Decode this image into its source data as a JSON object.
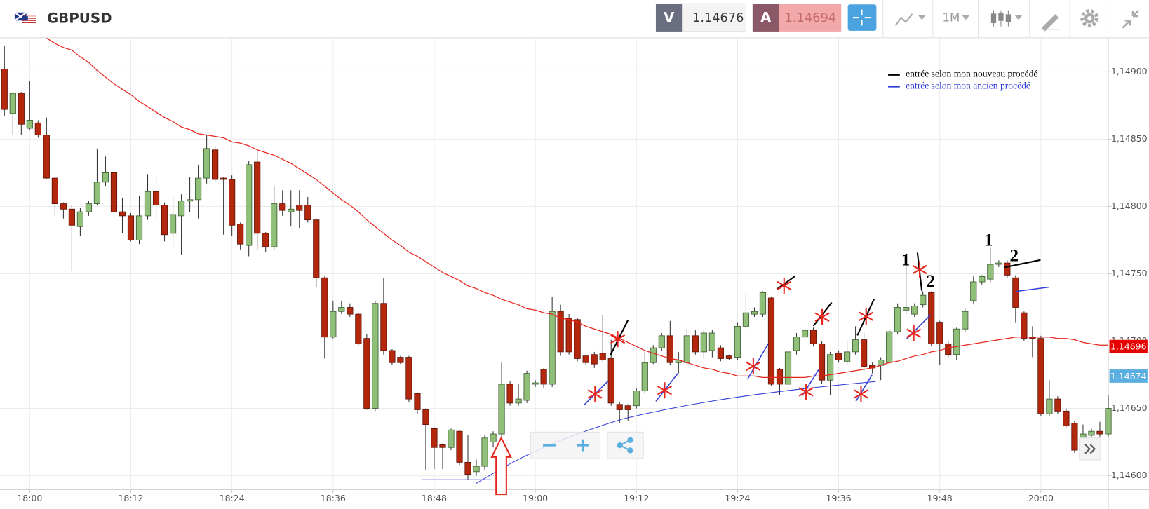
{
  "header": {
    "symbol": "GBPUSD",
    "bid_label": "V",
    "bid": "1.14676",
    "ask_label": "A",
    "ask": "1.14694",
    "timeframe": "1M"
  },
  "chart_data": {
    "type": "candlestick",
    "categories": [
      null,
      null,
      null,
      "18:00",
      null,
      null,
      null,
      null,
      null,
      null,
      null,
      null,
      null,
      null,
      null,
      "18:12",
      null,
      null,
      null,
      null,
      null,
      null,
      null,
      null,
      null,
      null,
      null,
      "18:24",
      null,
      null,
      null,
      null,
      null,
      null,
      null,
      null,
      null,
      null,
      null,
      "18:36",
      null,
      null,
      null,
      null,
      null,
      null,
      null,
      null,
      null,
      null,
      null,
      "18:48",
      null,
      null,
      null,
      null,
      null,
      null,
      null,
      null,
      null,
      null,
      null,
      "19:00",
      null,
      null,
      null,
      null,
      null,
      null,
      null,
      null,
      null,
      null,
      null,
      "19:12",
      null,
      null,
      null,
      null,
      null,
      null,
      null,
      null,
      null,
      null,
      null,
      "19:24",
      null,
      null,
      null,
      null,
      null,
      null,
      null,
      null,
      null,
      null,
      null,
      "19:36",
      null,
      null,
      null,
      null,
      null,
      null,
      null,
      null,
      null,
      null,
      null,
      "19:48",
      null,
      null,
      null,
      null,
      null,
      null,
      null,
      null,
      null,
      null,
      null,
      "20:00",
      null,
      null,
      null,
      null,
      null,
      null,
      null,
      null
    ],
    "open": [
      1.14902,
      1.14869,
      1.14884,
      1.14858,
      1.14862,
      1.14853,
      1.14821,
      1.14802,
      1.14798,
      1.14785,
      1.14796,
      1.14802,
      1.14818,
      1.14825,
      1.14796,
      1.14793,
      1.14775,
      1.14793,
      1.14811,
      1.14801,
      1.1478,
      1.14793,
      1.14804,
      1.14805,
      1.14821,
      1.14842,
      1.14821,
      1.1482,
      1.14787,
      1.14771,
      1.14833,
      1.1478,
      1.1477,
      1.14802,
      1.14796,
      1.14801,
      1.14801,
      1.1479,
      1.14747,
      1.14703,
      1.14722,
      1.14725,
      1.1472,
      1.14702,
      1.1465,
      1.14728,
      1.14693,
      1.14688,
      1.14688,
      1.14661,
      1.14649,
      1.14635,
      1.14623,
      1.14621,
      1.14633,
      1.1461,
      1.14603,
      1.14607,
      1.14625,
      1.14631,
      1.14668,
      1.14654,
      1.14656,
      1.14668,
      1.14679,
      1.14668,
      1.14722,
      1.14717,
      1.14716,
      1.14689,
      1.1469,
      1.14691,
      1.14687,
      1.14653,
      1.14652,
      1.14652,
      1.14663,
      1.14684,
      1.14695,
      1.14704,
      1.14684,
      1.14684,
      1.14704,
      1.14692,
      1.14693,
      1.14695,
      1.14689,
      1.14688,
      1.14711,
      1.1472,
      1.1472,
      1.14732,
      1.14679,
      1.14668,
      1.14693,
      1.14703,
      1.14708,
      1.14698,
      1.14671,
      1.14691,
      1.14685,
      1.14692,
      1.14701,
      1.14682,
      1.14682,
      1.14684,
      1.14707,
      1.14723,
      1.1472,
      1.14727,
      1.14736,
      1.14714,
      1.14698,
      1.1469,
      1.14709,
      1.1473,
      1.14744,
      1.14746,
      1.14757,
      1.14758,
      1.14747,
      1.14721,
      1.14703,
      1.14702,
      1.14646,
      1.14657,
      1.14648,
      1.14639,
      1.14628,
      1.1463,
      1.14633,
      1.14631
    ],
    "high": [
      1.14919,
      1.14885,
      1.14885,
      1.14893,
      1.14864,
      1.14866,
      1.14821,
      1.14803,
      1.14801,
      1.14799,
      1.14804,
      1.14843,
      1.14837,
      1.14826,
      1.14806,
      1.14795,
      1.14808,
      1.14824,
      1.14823,
      1.14803,
      1.14808,
      1.14809,
      1.14822,
      1.14831,
      1.14853,
      1.14845,
      1.14822,
      1.14823,
      1.14788,
      1.14834,
      1.14842,
      1.14781,
      1.14815,
      1.14812,
      1.14812,
      1.14812,
      1.14807,
      1.14791,
      1.14748,
      1.1473,
      1.1473,
      1.14728,
      1.14721,
      1.14705,
      1.1473,
      1.14747,
      1.14694,
      1.14689,
      1.14689,
      1.14662,
      1.1465,
      1.14636,
      1.14624,
      1.14635,
      1.14634,
      1.1463,
      1.14612,
      1.1463,
      1.14633,
      1.14684,
      1.1467,
      1.14668,
      1.14678,
      1.14671,
      1.1468,
      1.14733,
      1.14727,
      1.1472,
      1.14717,
      1.1469,
      1.14692,
      1.14719,
      1.14701,
      1.14655,
      1.14653,
      1.14665,
      1.14692,
      1.14697,
      1.14706,
      1.14715,
      1.14692,
      1.14709,
      1.14708,
      1.14708,
      1.14708,
      1.14697,
      1.1469,
      1.14714,
      1.14736,
      1.14725,
      1.14737,
      1.14733,
      1.1468,
      1.14693,
      1.14706,
      1.14711,
      1.1471,
      1.147,
      1.14692,
      1.14693,
      1.147,
      1.14711,
      1.14706,
      1.14684,
      1.14688,
      1.14709,
      1.14728,
      1.14758,
      1.14728,
      1.14737,
      1.14737,
      1.14715,
      1.147,
      1.1471,
      1.14724,
      1.14748,
      1.14749,
      1.14769,
      1.1476,
      1.1476,
      1.14749,
      1.14722,
      1.14711,
      1.14704,
      1.14671,
      1.14659,
      1.1465,
      1.14641,
      1.14638,
      1.14635,
      1.1464,
      1.1466
    ],
    "low": [
      1.14867,
      1.14853,
      1.14853,
      1.14857,
      1.14851,
      1.1482,
      1.14793,
      1.14791,
      1.14752,
      1.14778,
      1.14793,
      1.14801,
      1.14815,
      1.14793,
      1.1478,
      1.14774,
      1.14772,
      1.1479,
      1.1479,
      1.14774,
      1.1477,
      1.14764,
      1.14796,
      1.14791,
      1.14817,
      1.14818,
      1.14779,
      1.14778,
      1.14768,
      1.14763,
      1.14768,
      1.14766,
      1.14768,
      1.14793,
      1.14785,
      1.14784,
      1.14788,
      1.1474,
      1.14687,
      1.14702,
      1.1472,
      1.14718,
      1.14697,
      1.14649,
      1.14648,
      1.1469,
      1.14682,
      1.14683,
      1.14655,
      1.14646,
      1.14604,
      1.14605,
      1.14605,
      1.14619,
      1.14608,
      1.14597,
      1.146,
      1.14604,
      1.14621,
      1.14629,
      1.14652,
      1.14652,
      1.14654,
      1.14666,
      1.14665,
      1.14666,
      1.14689,
      1.1469,
      1.14685,
      1.14682,
      1.1468,
      1.14685,
      1.14652,
      1.14639,
      1.14641,
      1.1465,
      1.14661,
      1.14683,
      1.14693,
      1.14682,
      1.14676,
      1.14682,
      1.1469,
      1.14687,
      1.14688,
      1.14685,
      1.14686,
      1.14686,
      1.14709,
      1.14718,
      1.14718,
      1.14667,
      1.1466,
      1.14663,
      1.1469,
      1.147,
      1.14696,
      1.14668,
      1.1466,
      1.14684,
      1.14682,
      1.1469,
      1.14678,
      1.14676,
      1.14671,
      1.14682,
      1.14705,
      1.1472,
      1.14718,
      1.14725,
      1.14696,
      1.14682,
      1.14688,
      1.14686,
      1.14707,
      1.14728,
      1.14742,
      1.14744,
      1.14755,
      1.14747,
      1.14714,
      1.147,
      1.14688,
      1.14644,
      1.14644,
      1.14646,
      1.14636,
      1.14617,
      1.14626,
      1.14628,
      1.14629,
      1.14629
    ],
    "close": [
      1.14872,
      1.14884,
      1.14861,
      1.14864,
      1.14853,
      1.14821,
      1.14802,
      1.14798,
      1.14786,
      1.14796,
      1.14802,
      1.14818,
      1.14825,
      1.14796,
      1.14793,
      1.14775,
      1.14793,
      1.14811,
      1.14801,
      1.14779,
      1.14794,
      1.14804,
      1.14805,
      1.14821,
      1.14843,
      1.1482,
      1.1482,
      1.14786,
      1.14772,
      1.14831,
      1.1478,
      1.1477,
      1.14802,
      1.14797,
      1.14798,
      1.14797,
      1.1479,
      1.14747,
      1.14703,
      1.14722,
      1.14725,
      1.1472,
      1.14698,
      1.1465,
      1.14728,
      1.14693,
      1.14684,
      1.14684,
      1.14657,
      1.14649,
      1.14638,
      1.14621,
      1.14621,
      1.14634,
      1.1461,
      1.14601,
      1.14607,
      1.14628,
      1.14631,
      1.14668,
      1.14654,
      1.14657,
      1.14676,
      1.14669,
      1.14668,
      1.14722,
      1.14692,
      1.14692,
      1.14687,
      1.14684,
      1.14683,
      1.14686,
      1.14654,
      1.14649,
      1.14649,
      1.14663,
      1.14684,
      1.14695,
      1.14704,
      1.14684,
      1.14686,
      1.14704,
      1.14692,
      1.14706,
      1.14706,
      1.14687,
      1.14687,
      1.14711,
      1.14721,
      1.14722,
      1.14736,
      1.14668,
      1.14668,
      1.14692,
      1.14703,
      1.14708,
      1.14698,
      1.14671,
      1.1469,
      1.14686,
      1.14692,
      1.14701,
      1.14681,
      1.1468,
      1.14686,
      1.14707,
      1.14725,
      1.14725,
      1.14726,
      1.14734,
      1.14698,
      1.14698,
      1.1469,
      1.14709,
      1.14722,
      1.14744,
      1.14748,
      1.14757,
      1.14758,
      1.14749,
      1.14725,
      1.14702,
      1.14702,
      1.14646,
      1.14657,
      1.14648,
      1.14637,
      1.14619,
      1.14631,
      1.14633,
      1.14631,
      1.1465
    ],
    "up_color": "#8fbf78",
    "down_color": "#b3270d",
    "overlays": [
      {
        "color": "#e8251d",
        "values": [
          null,
          null,
          null,
          null,
          null,
          1.14925,
          1.14921,
          1.14918,
          1.14916,
          1.14911,
          1.14907,
          1.14901,
          1.14896,
          1.14891,
          1.14887,
          1.14883,
          1.14878,
          1.14874,
          1.1487,
          1.14866,
          1.14863,
          1.14859,
          1.14857,
          1.14854,
          1.14853,
          1.14852,
          1.14851,
          1.14848,
          1.14847,
          1.14845,
          1.14842,
          1.1484,
          1.14838,
          1.14835,
          1.14832,
          1.14828,
          1.14824,
          1.1482,
          1.14815,
          1.1481,
          1.14805,
          1.14801,
          1.14796,
          1.1479,
          1.14785,
          1.1478,
          1.14775,
          1.14771,
          1.14766,
          1.14763,
          1.14759,
          1.14755,
          1.14751,
          1.14748,
          1.14745,
          1.14741,
          1.14739,
          1.14736,
          1.14734,
          1.14731,
          1.14729,
          1.14727,
          1.14724,
          1.14723,
          1.14721,
          1.1472,
          1.14717,
          1.14716,
          1.14714,
          1.14711,
          1.14709,
          1.14707,
          1.14705,
          1.14702,
          1.14699,
          1.14696,
          1.14693,
          1.14691,
          1.14689,
          1.14687,
          1.14686,
          1.14684,
          1.14682,
          1.1468,
          1.14679,
          1.14677,
          1.14676,
          1.14674,
          1.14674,
          1.14674,
          1.14673,
          1.14673,
          1.14673,
          1.14673,
          1.14673,
          1.14673,
          1.14674,
          1.14674,
          1.14675,
          1.14676,
          1.14677,
          1.14678,
          1.14679,
          1.1468,
          1.14682,
          1.14684,
          1.14685,
          1.14687,
          1.14689,
          1.1469,
          1.14692,
          1.14693,
          1.14695,
          1.14696,
          1.14697,
          1.14698,
          1.14699,
          1.147,
          1.14701,
          1.14702,
          1.14703,
          1.14703,
          1.14703,
          1.14703,
          1.14703,
          1.14702,
          1.14702,
          1.14701,
          1.14699,
          1.14698,
          1.14697,
          1.14697
        ]
      }
    ],
    "ylim": [
      1.1459,
      1.14925
    ],
    "yticks": [
      {
        "value": 1.149,
        "label": "1,14900"
      },
      {
        "value": 1.1485,
        "label": "1,14850"
      },
      {
        "value": 1.148,
        "label": "1,14800"
      },
      {
        "value": 1.1475,
        "label": "1,14750"
      },
      {
        "value": 1.147,
        "label": "1,14700"
      },
      {
        "value": 1.1465,
        "label": "1,14650"
      },
      {
        "value": 1.146,
        "label": "1,14600"
      }
    ],
    "grid": true,
    "price_markers": [
      {
        "value": 1.14696,
        "label": "1,14696",
        "color": "#e60000"
      },
      {
        "value": 1.14674,
        "label": "1,14674",
        "color": "#5aaee0"
      }
    ],
    "notes": [
      {
        "text": "entrée selon mon nouveau procédé",
        "color": "#000000"
      },
      {
        "text": "entrée selon mon ancien procédé",
        "color": "#2b3bd6"
      }
    ],
    "annotations": [
      "1",
      "2",
      "1",
      "2"
    ]
  }
}
